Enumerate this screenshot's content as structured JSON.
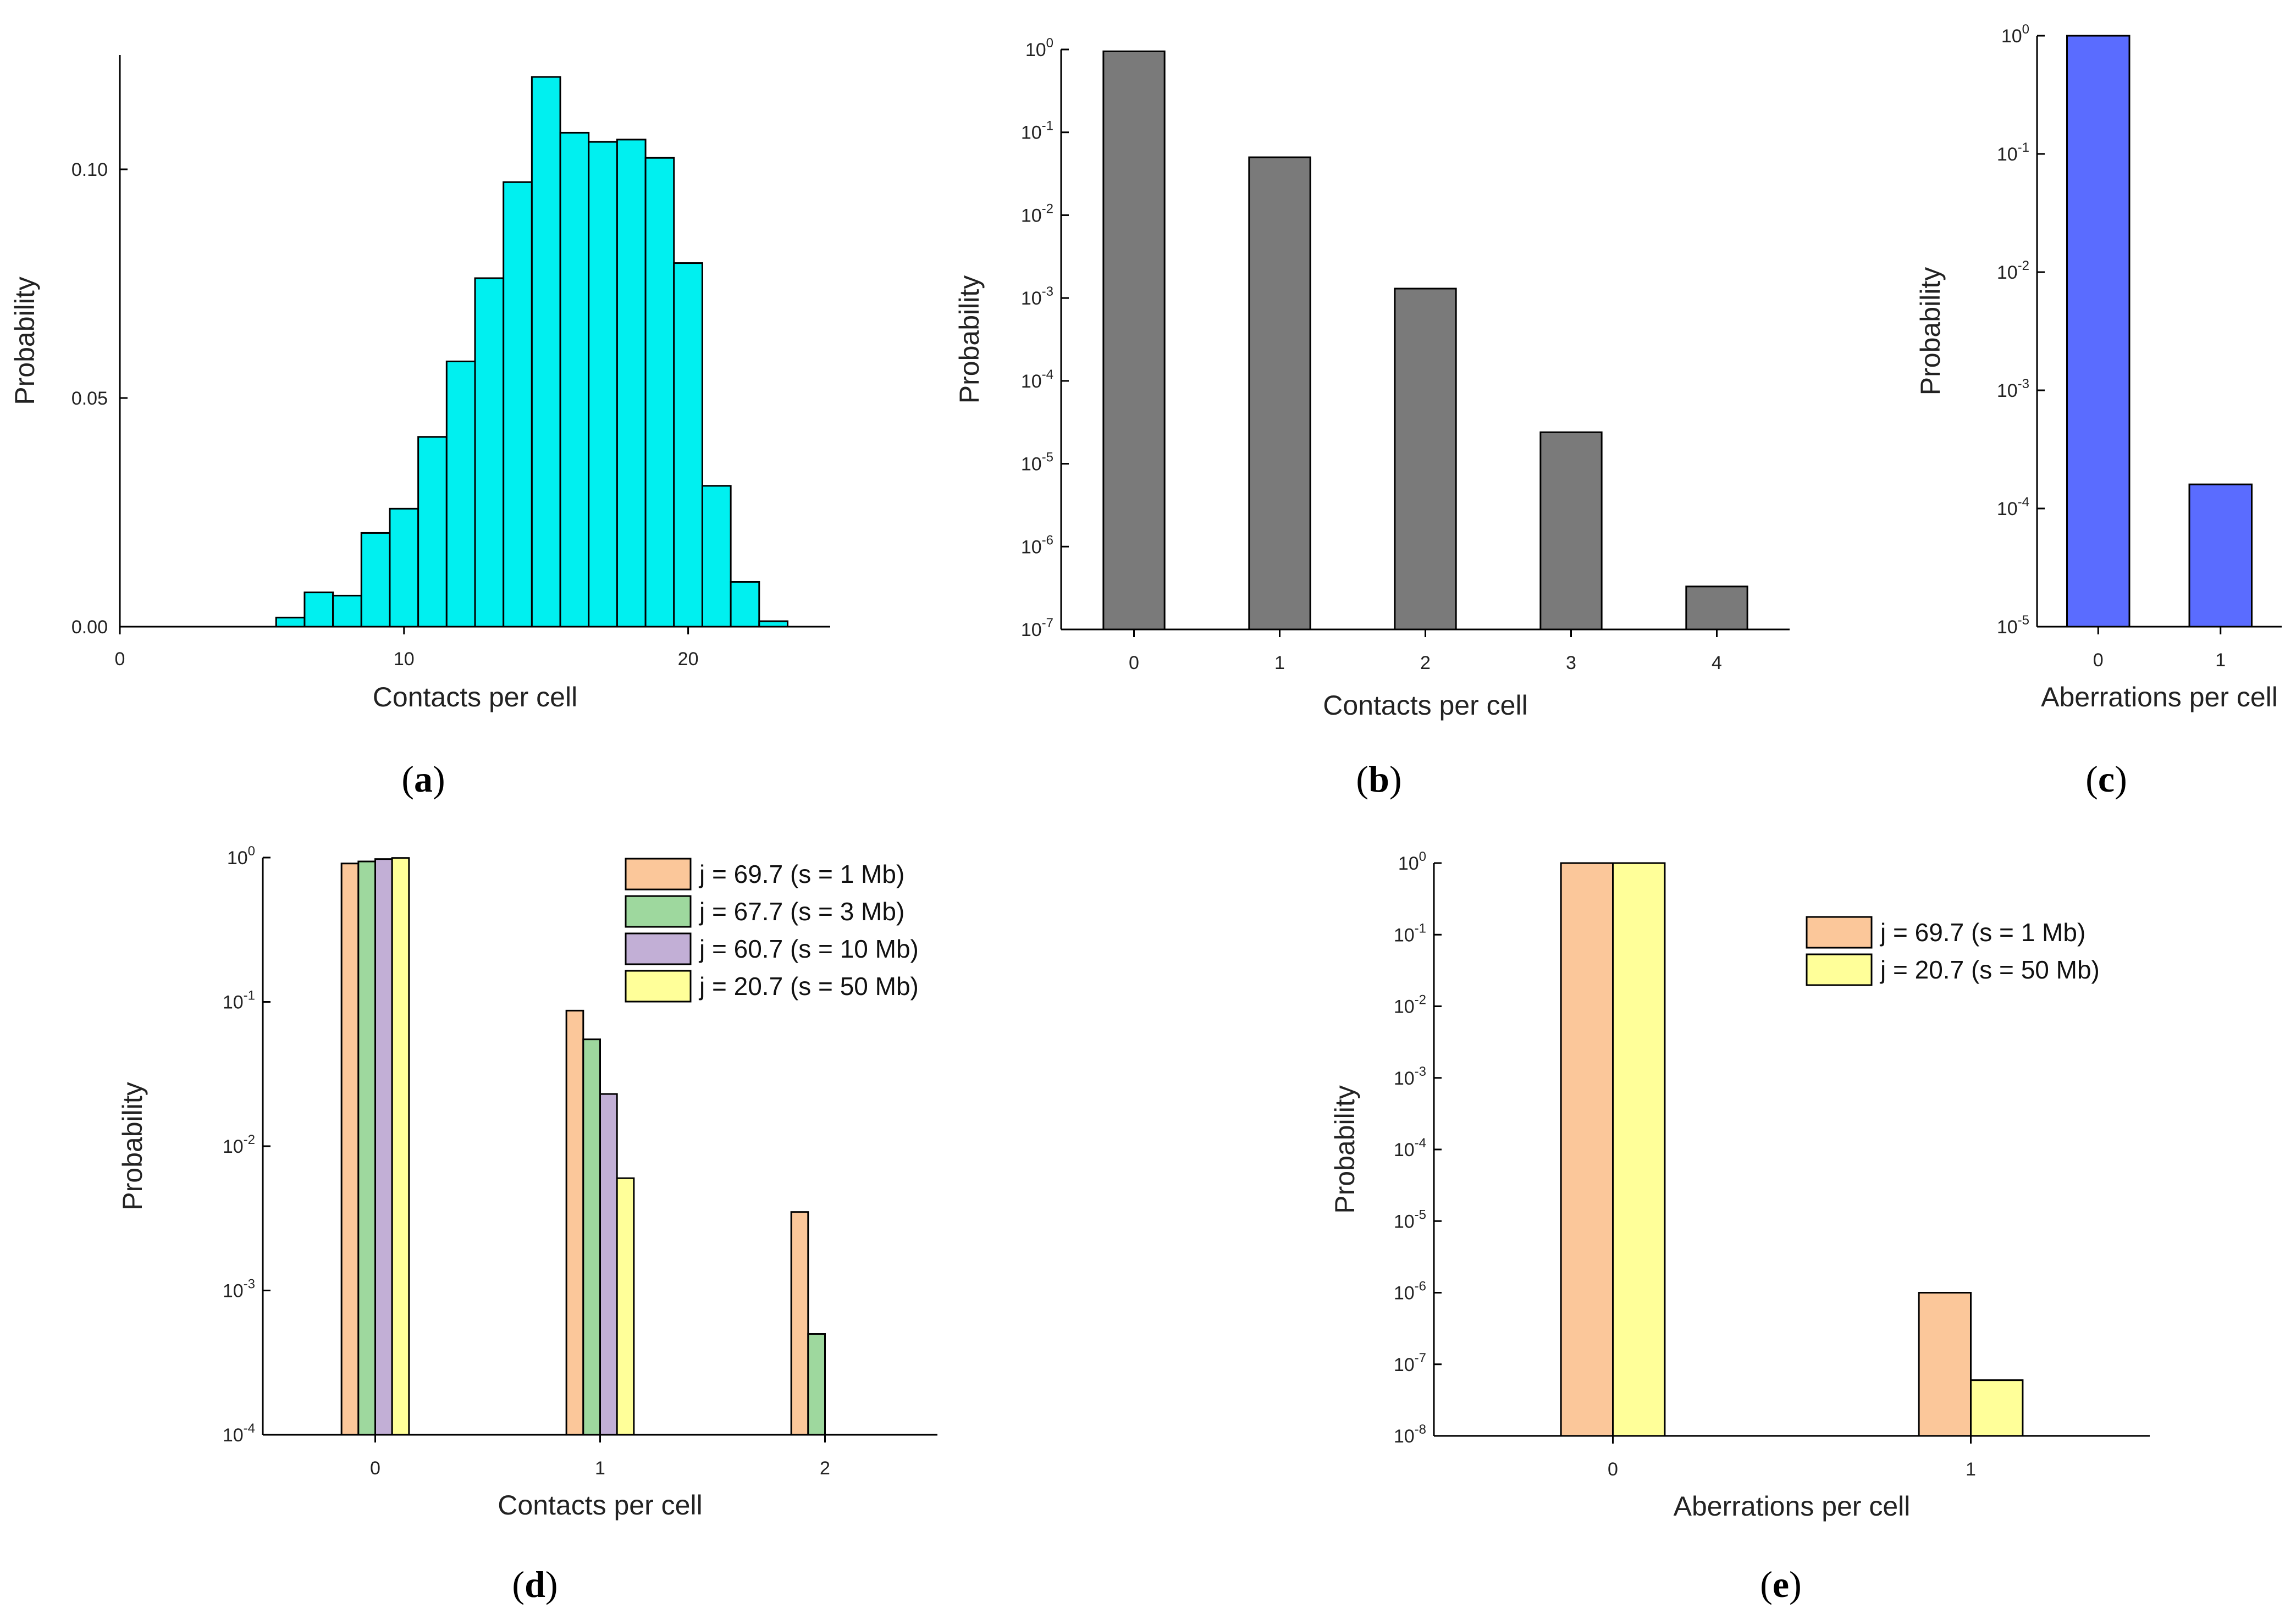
{
  "chart_data": [
    {
      "id": "a",
      "type": "bar",
      "caption_letter": "a",
      "xlabel": "Contacts per cell",
      "ylabel": "Probability",
      "yscale": "linear",
      "xlim": [
        0,
        25
      ],
      "ylim": [
        0,
        0.125
      ],
      "xticks": [
        "0",
        "10",
        "20"
      ],
      "yticks": [
        "0.00",
        "0.05",
        "0.10"
      ],
      "bar_color": "#00f0f0",
      "x": [
        6,
        7,
        8,
        9,
        10,
        11,
        12,
        13,
        14,
        15,
        16,
        17,
        18,
        19,
        20,
        21,
        22,
        23
      ],
      "values": [
        0.002,
        0.0075,
        0.0068,
        0.0205,
        0.0258,
        0.0415,
        0.058,
        0.0762,
        0.0972,
        0.1202,
        0.108,
        0.106,
        0.1065,
        0.1025,
        0.0795,
        0.0308,
        0.0098,
        0.0012
      ]
    },
    {
      "id": "b",
      "type": "bar",
      "caption_letter": "b",
      "xlabel": "Contacts per cell",
      "ylabel": "Probability",
      "yscale": "log",
      "ylim_exp": [
        -7,
        0
      ],
      "ytick_base": "10",
      "ytick_exps": [
        "-7",
        "-6",
        "-5",
        "-4",
        "-3",
        "-2",
        "-1",
        "0"
      ],
      "categories": [
        "0",
        "1",
        "2",
        "3",
        "4"
      ],
      "bar_color": "#7a7a7a",
      "values": [
        0.95,
        0.05,
        0.0013,
        2.4e-05,
        3.3e-07
      ]
    },
    {
      "id": "c",
      "type": "bar",
      "caption_letter": "c",
      "xlabel": "Aberrations per cell",
      "ylabel": "Probability",
      "yscale": "log",
      "ylim_exp": [
        -5,
        0
      ],
      "ytick_base": "10",
      "ytick_exps": [
        "-5",
        "-4",
        "-3",
        "-2",
        "-1",
        "0"
      ],
      "categories": [
        "0",
        "1"
      ],
      "bar_color": "#5a6cff",
      "values": [
        0.9998,
        0.00016
      ]
    },
    {
      "id": "d",
      "type": "bar",
      "caption_letter": "d",
      "xlabel": "Contacts per cell",
      "ylabel": "Probability",
      "yscale": "log",
      "ylim_exp": [
        -4,
        0
      ],
      "ytick_base": "10",
      "ytick_exps": [
        "-4",
        "-3",
        "-2",
        "-1",
        "0"
      ],
      "categories": [
        "0",
        "1",
        "2"
      ],
      "legend_position": "top-right",
      "series": [
        {
          "name": "j = 69.7 (s = 1 Mb)",
          "color": "#fbc79a",
          "values": [
            0.91,
            0.087,
            0.0035
          ]
        },
        {
          "name": "j = 67.7 (s = 3 Mb)",
          "color": "#9ed89e",
          "values": [
            0.94,
            0.055,
            0.0005
          ]
        },
        {
          "name": "j = 60.7 (s = 10 Mb)",
          "color": "#c2afd6",
          "values": [
            0.977,
            0.023,
            null
          ]
        },
        {
          "name": "j = 20.7 (s = 50 Mb)",
          "color": "#ffff99",
          "values": [
            0.994,
            0.006,
            null
          ]
        }
      ]
    },
    {
      "id": "e",
      "type": "bar",
      "caption_letter": "e",
      "xlabel": "Aberrations per cell",
      "ylabel": "Probability",
      "yscale": "log",
      "ylim_exp": [
        -8,
        0
      ],
      "ytick_base": "10",
      "ytick_exps": [
        "-8",
        "-7",
        "-6",
        "-5",
        "-4",
        "-3",
        "-2",
        "-1",
        "0"
      ],
      "categories": [
        "0",
        "1"
      ],
      "legend_position": "top-right",
      "series": [
        {
          "name": "j = 69.7 (s = 1 Mb)",
          "color": "#fbc79a",
          "values": [
            0.999999,
            1e-06
          ]
        },
        {
          "name": "j = 20.7 (s = 50 Mb)",
          "color": "#ffff99",
          "values": [
            0.9999999,
            6e-08
          ]
        }
      ]
    }
  ]
}
